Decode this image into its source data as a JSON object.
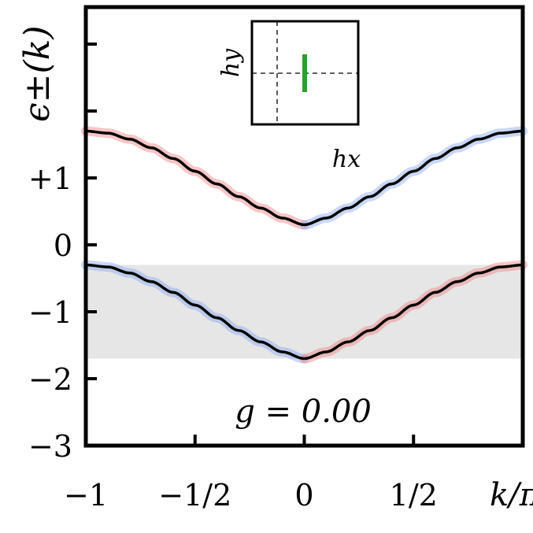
{
  "chart_data": {
    "type": "line",
    "ylabel": "ϵ±(k)",
    "xlabel_symbol": "k/π",
    "annotation": "g = 0.00",
    "x_ticks": [
      {
        "value": -1,
        "label": "−1"
      },
      {
        "value": -0.5,
        "label": "−1/2"
      },
      {
        "value": 0,
        "label": "0"
      },
      {
        "value": 0.5,
        "label": "1/2"
      }
    ],
    "y_ticks": [
      {
        "value": 1,
        "label": "+1"
      },
      {
        "value": 0,
        "label": "0"
      },
      {
        "value": -1,
        "label": "−1"
      },
      {
        "value": -2,
        "label": "−2"
      },
      {
        "value": -3,
        "label": "−3"
      }
    ],
    "y_minor_ticks": [
      2,
      3
    ],
    "xlim": [
      -1,
      1
    ],
    "ylim": [
      -3,
      3.4
    ],
    "gap_band": {
      "y_min": -1.7,
      "y_max": -0.3,
      "color": "#e6e6e6"
    },
    "series": [
      {
        "band": "upper",
        "x": [
          -1,
          -0.9,
          -0.8,
          -0.7,
          -0.6,
          -0.5,
          -0.4,
          -0.3,
          -0.2,
          -0.1,
          0,
          0.1,
          0.2,
          0.3,
          0.4,
          0.5,
          0.6,
          0.7,
          0.8,
          0.9,
          1
        ],
        "y": [
          1.7,
          1.67,
          1.58,
          1.45,
          1.29,
          1.1,
          0.91,
          0.72,
          0.55,
          0.4,
          0.3,
          0.4,
          0.55,
          0.72,
          0.91,
          1.1,
          1.29,
          1.45,
          1.58,
          1.67,
          1.7
        ]
      },
      {
        "band": "lower",
        "x": [
          -1,
          -0.9,
          -0.8,
          -0.7,
          -0.6,
          -0.5,
          -0.4,
          -0.3,
          -0.2,
          -0.1,
          0,
          0.1,
          0.2,
          0.3,
          0.4,
          0.5,
          0.6,
          0.7,
          0.8,
          0.9,
          1
        ],
        "y": [
          -0.3,
          -0.33,
          -0.42,
          -0.55,
          -0.71,
          -0.9,
          -1.09,
          -1.28,
          -1.45,
          -1.6,
          -1.7,
          -1.6,
          -1.45,
          -1.28,
          -1.09,
          -0.9,
          -0.71,
          -0.55,
          -0.42,
          -0.33,
          -0.3
        ]
      }
    ],
    "line_color": "#000000",
    "halo_colors": {
      "red": "#f08080",
      "blue": "#87a8f0"
    },
    "inset": {
      "xlabel": "hx",
      "ylabel": "hy",
      "segment_color": "#2ca02c"
    }
  }
}
